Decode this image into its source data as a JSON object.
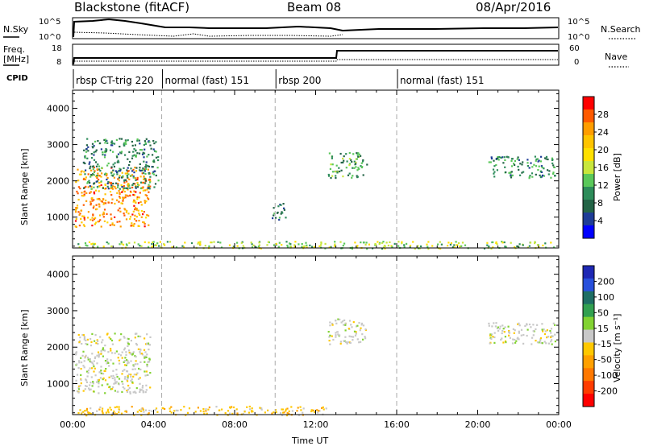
{
  "header": {
    "station": "Blackstone (fitACF)",
    "beam": "Beam 08",
    "date": "08/Apr/2016"
  },
  "labels": {
    "nsky": "N.Sky",
    "nsearch": "N.Search",
    "freq": "Freq.",
    "freq_unit": "[MHz]",
    "nave": "Nave",
    "cpid": "CPID",
    "ylabel": "Slant Range [km]",
    "xlabel": "Time UT",
    "power_label": "Power [dB]",
    "velocity_label": "Velocity [m s⁻¹]"
  },
  "noise_panel": {
    "left_ticks": [
      "10^5",
      "10^0"
    ],
    "right_ticks": [
      "10^5",
      "10^0"
    ]
  },
  "freq_panel": {
    "left_ticks": [
      "18",
      "8"
    ],
    "right_ticks": [
      "60",
      "0"
    ]
  },
  "cpid_segments": [
    {
      "label": "rbsp CT-trig 220",
      "start": 0.0
    },
    {
      "label": "normal (fast) 151",
      "start": 4.4
    },
    {
      "label": "rbsp 200",
      "start": 10.0
    },
    {
      "label": "normal (fast) 151",
      "start": 16.0
    }
  ],
  "power_colorbar": {
    "ticks": [
      "28",
      "24",
      "20",
      "16",
      "12",
      "8",
      "4"
    ],
    "colors": [
      "#ff0000",
      "#ff5a00",
      "#ff9d00",
      "#ffc400",
      "#ffe000",
      "#c8e63c",
      "#5ac85a",
      "#2d8c5a",
      "#236446",
      "#1e3c96",
      "#0000ff"
    ]
  },
  "velocity_colorbar": {
    "ticks": [
      "200",
      "100",
      "50",
      "15",
      "-15",
      "-50",
      "-100",
      "-200"
    ],
    "colors": [
      "#1e28b4",
      "#2850dc",
      "#1e6e64",
      "#32a050",
      "#82d232",
      "#c8c8c8",
      "#ffc800",
      "#ffa000",
      "#ff7800",
      "#ff3c00",
      "#ff0000"
    ]
  },
  "chart_data": [
    {
      "type": "heatmap",
      "title": "Power",
      "xlabel": "Time UT",
      "ylabel": "Slant Range [km]",
      "xlim": [
        0,
        24
      ],
      "ylim": [
        150,
        4500
      ],
      "x_ticks": [
        "00:00",
        "04:00",
        "08:00",
        "12:00",
        "16:00",
        "20:00",
        "00:00"
      ],
      "y_ticks": [
        1000,
        2000,
        3000,
        4000
      ],
      "colorbar_label": "Power [dB]",
      "colorbar_range": [
        0,
        30
      ],
      "scatter_regions": [
        {
          "t_start": 0.1,
          "t_end": 3.8,
          "r_low": 750,
          "r_high": 2400,
          "power": 24
        },
        {
          "t_start": 0.5,
          "t_end": 4.2,
          "r_low": 1800,
          "r_high": 3200,
          "power": 8
        },
        {
          "t_start": 9.8,
          "t_end": 10.5,
          "r_low": 900,
          "r_high": 1400,
          "power": 8
        },
        {
          "t_start": 12.6,
          "t_end": 14.5,
          "r_low": 2100,
          "r_high": 2800,
          "power": 10
        },
        {
          "t_start": 20.5,
          "t_end": 23.8,
          "r_low": 2100,
          "r_high": 2700,
          "power": 8
        },
        {
          "t_start": 0.2,
          "t_end": 23.8,
          "r_low": 150,
          "r_high": 350,
          "power": 14
        }
      ]
    },
    {
      "type": "heatmap",
      "title": "Velocity",
      "xlabel": "Time UT",
      "ylabel": "Slant Range [km]",
      "xlim": [
        0,
        24
      ],
      "ylim": [
        150,
        4500
      ],
      "x_ticks": [
        "00:00",
        "04:00",
        "08:00",
        "12:00",
        "16:00",
        "20:00",
        "00:00"
      ],
      "y_ticks": [
        1000,
        2000,
        3000,
        4000
      ],
      "colorbar_label": "Velocity [m s⁻¹]",
      "colorbar_range": [
        -200,
        200
      ],
      "scatter_regions": [
        {
          "t_start": 0.1,
          "t_end": 3.8,
          "r_low": 750,
          "r_high": 2400,
          "velocity": 0
        },
        {
          "t_start": 12.6,
          "t_end": 14.5,
          "r_low": 2100,
          "r_high": 2800,
          "velocity": 0
        },
        {
          "t_start": 20.5,
          "t_end": 23.8,
          "r_low": 2100,
          "r_high": 2700,
          "velocity": 0
        },
        {
          "t_start": 0.2,
          "t_end": 12.5,
          "r_low": 150,
          "r_high": 400,
          "velocity": -40
        }
      ]
    }
  ]
}
